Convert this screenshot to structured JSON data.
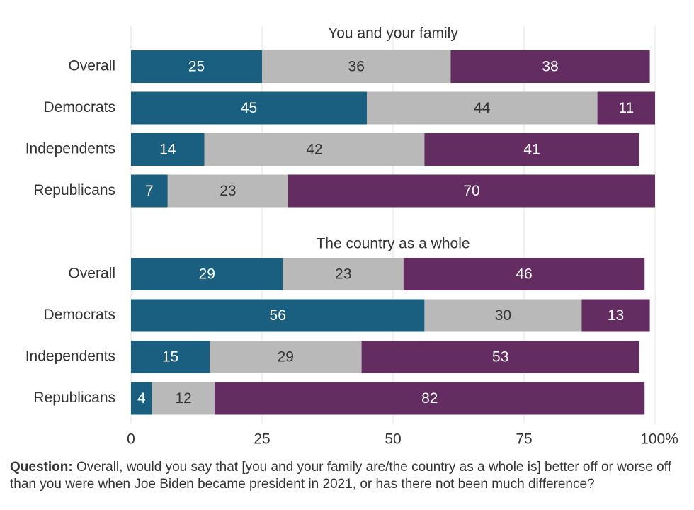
{
  "chart_data": {
    "type": "bar",
    "orientation": "horizontal",
    "stacked": true,
    "x_ticks": [
      "0",
      "25",
      "50",
      "75",
      "100%"
    ],
    "xlim": [
      0,
      100
    ],
    "grid": true,
    "colors": [
      "#1a5f7f",
      "#b9b9b9",
      "#642d62"
    ],
    "panels": [
      {
        "title": "You and your family",
        "categories": [
          "Overall",
          "Democrats",
          "Independents",
          "Republicans"
        ],
        "series": [
          {
            "values": [
              25,
              45,
              14,
              7
            ]
          },
          {
            "values": [
              36,
              44,
              42,
              23
            ]
          },
          {
            "values": [
              38,
              11,
              41,
              70
            ]
          }
        ]
      },
      {
        "title": "The country as a whole",
        "categories": [
          "Overall",
          "Democrats",
          "Independents",
          "Republicans"
        ],
        "series": [
          {
            "values": [
              29,
              56,
              15,
              4
            ]
          },
          {
            "values": [
              23,
              30,
              29,
              12
            ]
          },
          {
            "values": [
              46,
              13,
              53,
              82
            ]
          }
        ]
      }
    ]
  },
  "footnote": {
    "label": "Question:",
    "text": " Overall, would you say that [you and your family are/the country as a whole is] better off or worse off than you were when Joe Biden became president in 2021, or has there not been much difference?"
  }
}
